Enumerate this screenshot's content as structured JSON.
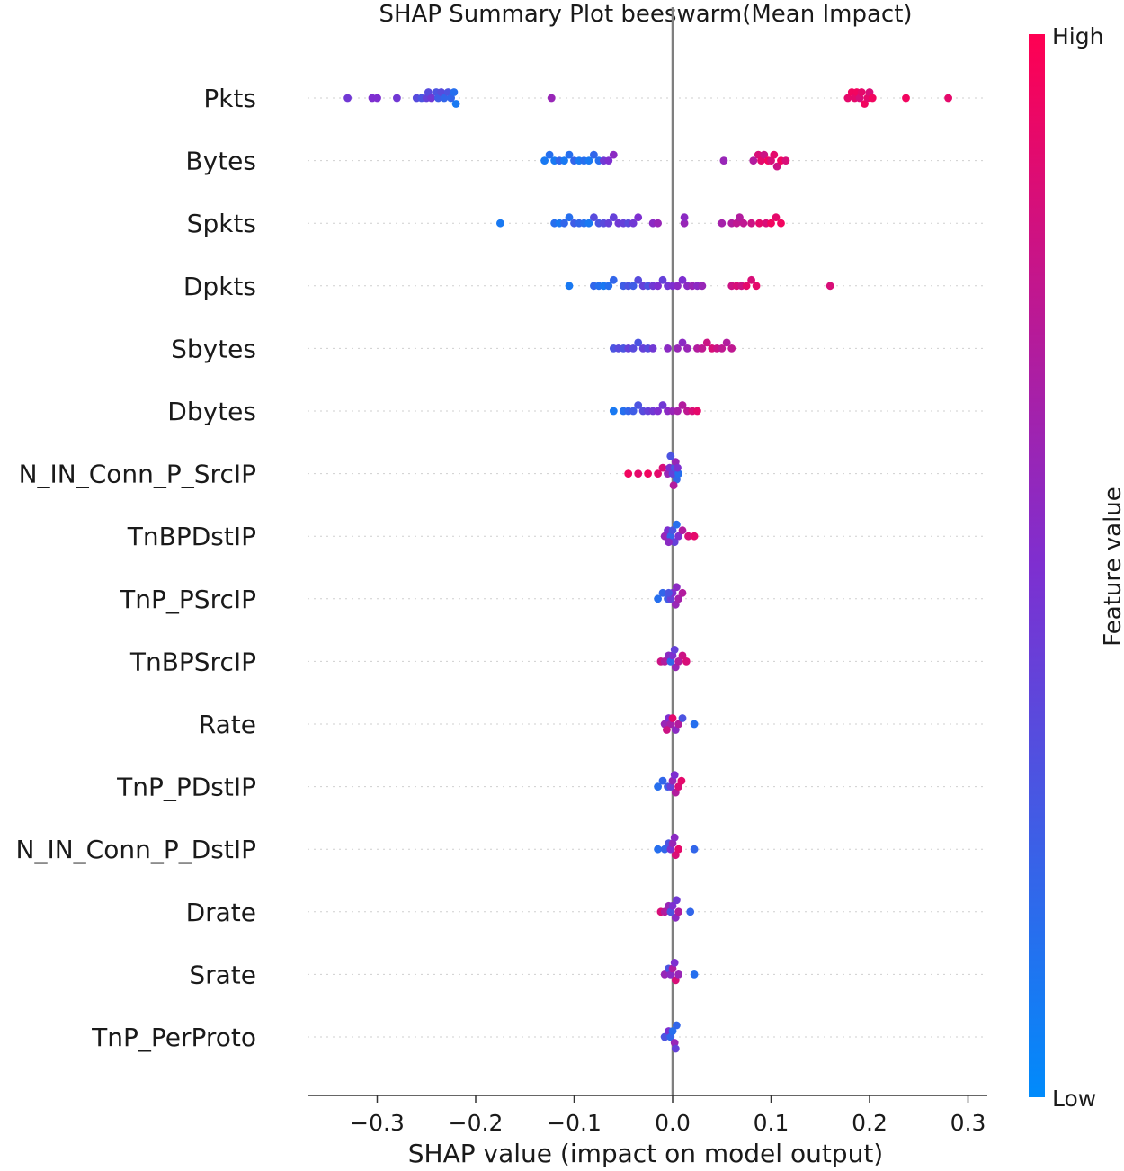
{
  "chart_data": {
    "type": "scatter",
    "subtype": "shap-beeswarm",
    "title": "SHAP Summary Plot beeswarm(Mean Impact)",
    "xlabel": "SHAP value (impact on model output)",
    "ylabel": "",
    "xlim": [
      -0.36,
      0.31
    ],
    "xticks": [
      -0.3,
      -0.2,
      -0.1,
      0.0,
      0.1,
      0.2,
      0.3
    ],
    "xtick_labels": [
      "−0.3",
      "−0.2",
      "−0.1",
      "0.0",
      "0.1",
      "0.2",
      "0.3"
    ],
    "grid": "horizontal dotted per feature",
    "colorbar": {
      "title": "Feature value",
      "high_label": "High",
      "low_label": "Low",
      "high_color": "#ff0052",
      "mid_color": "#7e2fd0",
      "low_color": "#008bfb"
    },
    "features": [
      {
        "name": "Pkts",
        "points": [
          [
            -0.33,
            0.45
          ],
          [
            -0.305,
            0.5
          ],
          [
            -0.3,
            0.5
          ],
          [
            -0.28,
            0.45
          ],
          [
            -0.26,
            0.35
          ],
          [
            -0.255,
            0.3
          ],
          [
            -0.25,
            0.4
          ],
          [
            -0.248,
            0.35
          ],
          [
            -0.245,
            0.45
          ],
          [
            -0.24,
            0.3
          ],
          [
            -0.238,
            0.25
          ],
          [
            -0.235,
            0.35
          ],
          [
            -0.232,
            0.2
          ],
          [
            -0.228,
            0.3
          ],
          [
            -0.225,
            0.2
          ],
          [
            -0.222,
            0.15
          ],
          [
            -0.22,
            0.1
          ],
          [
            -0.123,
            0.6
          ],
          [
            0.178,
            0.9
          ],
          [
            0.182,
            0.95
          ],
          [
            0.185,
            0.9
          ],
          [
            0.187,
            0.95
          ],
          [
            0.19,
            0.85
          ],
          [
            0.192,
            0.9
          ],
          [
            0.195,
            0.95
          ],
          [
            0.198,
            0.9
          ],
          [
            0.2,
            0.85
          ],
          [
            0.203,
            0.95
          ],
          [
            0.237,
            0.95
          ],
          [
            0.28,
            0.9
          ]
        ]
      },
      {
        "name": "Bytes",
        "points": [
          [
            -0.13,
            0.1
          ],
          [
            -0.125,
            0.15
          ],
          [
            -0.12,
            0.1
          ],
          [
            -0.115,
            0.2
          ],
          [
            -0.11,
            0.1
          ],
          [
            -0.105,
            0.15
          ],
          [
            -0.1,
            0.2
          ],
          [
            -0.095,
            0.1
          ],
          [
            -0.09,
            0.15
          ],
          [
            -0.085,
            0.1
          ],
          [
            -0.08,
            0.2
          ],
          [
            -0.075,
            0.15
          ],
          [
            -0.07,
            0.45
          ],
          [
            -0.065,
            0.5
          ],
          [
            -0.06,
            0.55
          ],
          [
            0.052,
            0.6
          ],
          [
            0.082,
            0.7
          ],
          [
            0.087,
            0.85
          ],
          [
            0.09,
            0.9
          ],
          [
            0.093,
            0.8
          ],
          [
            0.097,
            0.95
          ],
          [
            0.1,
            0.85
          ],
          [
            0.103,
            0.9
          ],
          [
            0.106,
            0.8
          ],
          [
            0.11,
            0.95
          ],
          [
            0.115,
            0.85
          ]
        ]
      },
      {
        "name": "Spkts",
        "points": [
          [
            -0.175,
            0.1
          ],
          [
            -0.12,
            0.15
          ],
          [
            -0.115,
            0.1
          ],
          [
            -0.11,
            0.2
          ],
          [
            -0.105,
            0.15
          ],
          [
            -0.1,
            0.25
          ],
          [
            -0.095,
            0.2
          ],
          [
            -0.09,
            0.15
          ],
          [
            -0.085,
            0.1
          ],
          [
            -0.08,
            0.35
          ],
          [
            -0.075,
            0.3
          ],
          [
            -0.07,
            0.35
          ],
          [
            -0.065,
            0.4
          ],
          [
            -0.06,
            0.4
          ],
          [
            -0.055,
            0.45
          ],
          [
            -0.05,
            0.4
          ],
          [
            -0.045,
            0.35
          ],
          [
            -0.04,
            0.45
          ],
          [
            -0.035,
            0.5
          ],
          [
            -0.02,
            0.55
          ],
          [
            -0.015,
            0.6
          ],
          [
            0.012,
            0.6
          ],
          [
            0.012,
            0.55
          ],
          [
            0.05,
            0.65
          ],
          [
            0.06,
            0.7
          ],
          [
            0.065,
            0.75
          ],
          [
            0.068,
            0.7
          ],
          [
            0.072,
            0.75
          ],
          [
            0.08,
            0.8
          ],
          [
            0.088,
            0.9
          ],
          [
            0.095,
            0.85
          ],
          [
            0.1,
            0.95
          ],
          [
            0.105,
            0.9
          ],
          [
            0.11,
            0.95
          ]
        ]
      },
      {
        "name": "Dpkts",
        "points": [
          [
            -0.105,
            0.1
          ],
          [
            -0.08,
            0.2
          ],
          [
            -0.075,
            0.15
          ],
          [
            -0.07,
            0.1
          ],
          [
            -0.065,
            0.15
          ],
          [
            -0.06,
            0.2
          ],
          [
            -0.05,
            0.25
          ],
          [
            -0.045,
            0.3
          ],
          [
            -0.04,
            0.25
          ],
          [
            -0.035,
            0.35
          ],
          [
            -0.03,
            0.4
          ],
          [
            -0.025,
            0.3
          ],
          [
            -0.02,
            0.45
          ],
          [
            -0.015,
            0.5
          ],
          [
            -0.01,
            0.4
          ],
          [
            -0.005,
            0.45
          ],
          [
            0.0,
            0.5
          ],
          [
            0.005,
            0.55
          ],
          [
            0.01,
            0.5
          ],
          [
            0.015,
            0.55
          ],
          [
            0.02,
            0.6
          ],
          [
            0.025,
            0.55
          ],
          [
            0.03,
            0.6
          ],
          [
            0.06,
            0.8
          ],
          [
            0.065,
            0.85
          ],
          [
            0.07,
            0.8
          ],
          [
            0.075,
            0.9
          ],
          [
            0.08,
            0.85
          ],
          [
            0.085,
            0.9
          ],
          [
            0.16,
            0.85
          ]
        ]
      },
      {
        "name": "Sbytes",
        "points": [
          [
            -0.06,
            0.3
          ],
          [
            -0.055,
            0.35
          ],
          [
            -0.05,
            0.3
          ],
          [
            -0.045,
            0.4
          ],
          [
            -0.04,
            0.35
          ],
          [
            -0.035,
            0.3
          ],
          [
            -0.03,
            0.4
          ],
          [
            -0.025,
            0.35
          ],
          [
            -0.02,
            0.45
          ],
          [
            -0.005,
            0.55
          ],
          [
            0.005,
            0.6
          ],
          [
            0.01,
            0.55
          ],
          [
            0.015,
            0.6
          ],
          [
            0.025,
            0.7
          ],
          [
            0.03,
            0.75
          ],
          [
            0.035,
            0.8
          ],
          [
            0.04,
            0.85
          ],
          [
            0.045,
            0.8
          ],
          [
            0.05,
            0.75
          ],
          [
            0.055,
            0.7
          ],
          [
            0.06,
            0.75
          ]
        ]
      },
      {
        "name": "Dbytes",
        "points": [
          [
            -0.06,
            0.1
          ],
          [
            -0.05,
            0.15
          ],
          [
            -0.045,
            0.2
          ],
          [
            -0.04,
            0.25
          ],
          [
            -0.035,
            0.3
          ],
          [
            -0.03,
            0.35
          ],
          [
            -0.025,
            0.4
          ],
          [
            -0.02,
            0.45
          ],
          [
            -0.015,
            0.5
          ],
          [
            -0.01,
            0.45
          ],
          [
            -0.005,
            0.55
          ],
          [
            0.0,
            0.6
          ],
          [
            0.005,
            0.65
          ],
          [
            0.01,
            0.7
          ],
          [
            0.015,
            0.75
          ],
          [
            0.02,
            0.85
          ],
          [
            0.025,
            0.9
          ]
        ]
      },
      {
        "name": "N_IN_Conn_P_SrcIP",
        "points": [
          [
            -0.045,
            0.95
          ],
          [
            -0.035,
            0.9
          ],
          [
            -0.025,
            0.95
          ],
          [
            -0.015,
            0.9
          ],
          [
            -0.01,
            0.85
          ],
          [
            -0.005,
            0.6
          ],
          [
            -0.003,
            0.5
          ],
          [
            0.0,
            0.4
          ],
          [
            0.002,
            0.3
          ],
          [
            0.004,
            0.2
          ],
          [
            0.006,
            0.15
          ],
          [
            0.003,
            0.6
          ],
          [
            0.001,
            0.7
          ],
          [
            -0.002,
            0.3
          ],
          [
            0.005,
            0.5
          ]
        ]
      },
      {
        "name": "TnBPDstIP",
        "points": [
          [
            -0.008,
            0.6
          ],
          [
            -0.005,
            0.5
          ],
          [
            -0.002,
            0.2
          ],
          [
            0.0,
            0.3
          ],
          [
            0.002,
            0.4
          ],
          [
            0.004,
            0.15
          ],
          [
            0.006,
            0.5
          ],
          [
            0.01,
            0.7
          ],
          [
            0.016,
            0.85
          ],
          [
            0.022,
            0.9
          ],
          [
            -0.004,
            0.55
          ]
        ]
      },
      {
        "name": "TnP_PSrcIP",
        "points": [
          [
            -0.015,
            0.15
          ],
          [
            -0.01,
            0.2
          ],
          [
            -0.005,
            0.25
          ],
          [
            -0.002,
            0.4
          ],
          [
            0.0,
            0.5
          ],
          [
            0.003,
            0.6
          ],
          [
            0.006,
            0.65
          ],
          [
            0.01,
            0.7
          ],
          [
            0.004,
            0.55
          ],
          [
            -0.004,
            0.3
          ]
        ]
      },
      {
        "name": "TnBPSrcIP",
        "points": [
          [
            -0.012,
            0.8
          ],
          [
            -0.008,
            0.7
          ],
          [
            -0.004,
            0.55
          ],
          [
            -0.002,
            0.2
          ],
          [
            0.0,
            0.5
          ],
          [
            0.003,
            0.6
          ],
          [
            0.006,
            0.7
          ],
          [
            0.01,
            0.8
          ],
          [
            0.014,
            0.85
          ],
          [
            0.002,
            0.4
          ]
        ]
      },
      {
        "name": "Rate",
        "points": [
          [
            -0.008,
            0.6
          ],
          [
            -0.004,
            0.5
          ],
          [
            -0.002,
            0.65
          ],
          [
            0.0,
            0.9
          ],
          [
            0.003,
            0.55
          ],
          [
            0.006,
            0.7
          ],
          [
            0.01,
            0.3
          ],
          [
            0.022,
            0.15
          ],
          [
            -0.006,
            0.8
          ]
        ]
      },
      {
        "name": "TnP_PDstIP",
        "points": [
          [
            -0.015,
            0.15
          ],
          [
            -0.01,
            0.2
          ],
          [
            -0.005,
            0.25
          ],
          [
            -0.002,
            0.4
          ],
          [
            0.0,
            0.6
          ],
          [
            0.003,
            0.7
          ],
          [
            0.006,
            0.85
          ],
          [
            0.009,
            0.9
          ],
          [
            0.002,
            0.5
          ]
        ]
      },
      {
        "name": "N_IN_Conn_P_DstIP",
        "points": [
          [
            -0.015,
            0.15
          ],
          [
            -0.008,
            0.2
          ],
          [
            -0.004,
            0.3
          ],
          [
            -0.002,
            0.5
          ],
          [
            0.0,
            0.6
          ],
          [
            0.003,
            0.85
          ],
          [
            0.006,
            0.9
          ],
          [
            0.022,
            0.2
          ],
          [
            0.002,
            0.55
          ]
        ]
      },
      {
        "name": "Drate",
        "points": [
          [
            -0.012,
            0.85
          ],
          [
            -0.008,
            0.7
          ],
          [
            -0.004,
            0.6
          ],
          [
            -0.002,
            0.3
          ],
          [
            0.0,
            0.5
          ],
          [
            0.003,
            0.55
          ],
          [
            0.006,
            0.7
          ],
          [
            0.018,
            0.2
          ],
          [
            0.004,
            0.45
          ]
        ]
      },
      {
        "name": "Srate",
        "points": [
          [
            -0.008,
            0.6
          ],
          [
            -0.004,
            0.3
          ],
          [
            -0.002,
            0.55
          ],
          [
            0.0,
            0.7
          ],
          [
            0.003,
            0.85
          ],
          [
            0.006,
            0.6
          ],
          [
            0.022,
            0.15
          ],
          [
            0.002,
            0.5
          ]
        ]
      },
      {
        "name": "TnP_PerProto",
        "points": [
          [
            -0.008,
            0.3
          ],
          [
            -0.004,
            0.5
          ],
          [
            -0.002,
            0.2
          ],
          [
            0.0,
            0.15
          ],
          [
            0.002,
            0.6
          ],
          [
            0.004,
            0.2
          ],
          [
            0.003,
            0.4
          ]
        ]
      }
    ]
  }
}
